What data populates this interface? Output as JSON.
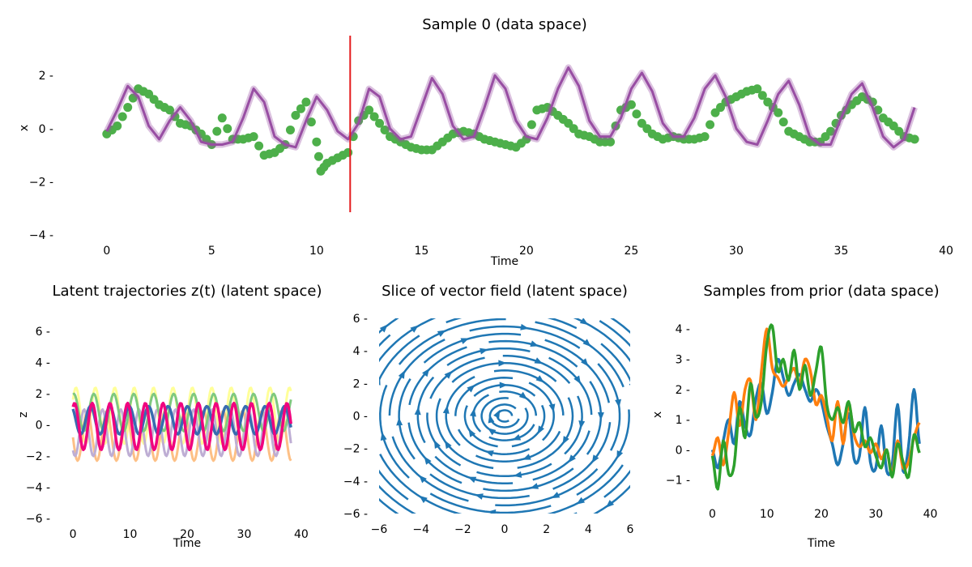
{
  "chart_data": [
    {
      "type": "line",
      "title": "Sample 0 (data space)",
      "xlabel": "Time",
      "ylabel": "x",
      "xlim": [
        -2,
        40
      ],
      "ylim": [
        -4,
        3.5
      ],
      "xticks": [
        "0",
        "5",
        "10",
        "15",
        "20",
        "25",
        "30",
        "35",
        "40"
      ],
      "yticks": [
        "2",
        "0",
        "−2",
        "−4"
      ],
      "vline_x": 11.6,
      "vline_color": "#e41a1c",
      "observations_color": "#4daf4a",
      "prediction_color": "#984ea3",
      "observations": {
        "t": [
          0,
          0.5,
          1,
          1.5,
          2,
          2.5,
          3,
          3.5,
          4,
          4.5,
          5,
          5.5,
          6,
          6.5,
          7,
          7.5,
          8,
          8.5,
          9,
          9.5,
          10,
          10.2,
          10.5,
          11,
          11.5,
          12,
          12.5,
          13,
          13.5,
          14,
          14.5,
          15,
          15.5,
          16,
          16.5,
          17,
          17.5,
          18,
          18.5,
          19,
          19.5,
          20,
          20.5,
          21,
          21.5,
          22,
          22.5,
          23,
          23.5,
          24,
          24.5,
          25,
          25.5,
          26,
          26.5,
          27,
          27.5,
          28,
          28.5,
          29,
          29.5,
          30,
          30.5,
          31,
          31.5,
          32,
          32.5,
          33,
          33.5,
          34,
          34.5,
          35,
          35.5,
          36,
          36.5,
          37,
          37.5,
          38,
          38.5
        ],
        "x": [
          -0.2,
          0.1,
          0.8,
          1.5,
          1.3,
          0.9,
          0.7,
          0.2,
          0.1,
          -0.2,
          -0.6,
          0.4,
          -0.4,
          -0.4,
          -0.3,
          -1.0,
          -0.9,
          -0.6,
          0.5,
          1.0,
          -0.5,
          -1.6,
          -1.3,
          -1.1,
          -0.9,
          0.3,
          0.7,
          0.2,
          -0.3,
          -0.5,
          -0.7,
          -0.8,
          -0.8,
          -0.5,
          -0.2,
          -0.1,
          -0.2,
          -0.4,
          -0.5,
          -0.6,
          -0.7,
          -0.4,
          0.7,
          0.8,
          0.5,
          0.2,
          -0.2,
          -0.3,
          -0.5,
          -0.5,
          0.7,
          0.9,
          0.2,
          -0.2,
          -0.4,
          -0.3,
          -0.4,
          -0.4,
          -0.3,
          0.6,
          1.0,
          1.2,
          1.4,
          1.5,
          1.0,
          0.6,
          -0.1,
          -0.3,
          -0.5,
          -0.5,
          -0.1,
          0.5,
          0.9,
          1.2,
          1.0,
          0.4,
          0.1,
          -0.3,
          -0.4
        ]
      },
      "prediction": {
        "t": [
          0,
          0.5,
          1,
          1.5,
          2,
          2.5,
          3,
          3.5,
          4,
          4.5,
          5,
          5.5,
          6,
          6.5,
          7,
          7.5,
          8,
          8.5,
          9,
          9.5,
          10,
          10.5,
          11,
          11.5,
          12,
          12.5,
          13,
          13.5,
          14,
          14.5,
          15,
          15.5,
          16,
          16.5,
          17,
          17.5,
          18,
          18.5,
          19,
          19.5,
          20,
          20.5,
          21,
          21.5,
          22,
          22.5,
          23,
          23.5,
          24,
          24.5,
          25,
          25.5,
          26,
          26.5,
          27,
          27.5,
          28,
          28.5,
          29,
          29.5,
          30,
          30.5,
          31,
          31.5,
          32,
          32.5,
          33,
          33.5,
          34,
          34.5,
          35,
          35.5,
          36,
          36.5,
          37,
          37.5,
          38,
          38.5
        ],
        "x": [
          -0.1,
          0.7,
          1.6,
          1.2,
          0.1,
          -0.4,
          0.3,
          0.8,
          0.3,
          -0.5,
          -0.6,
          -0.6,
          -0.5,
          0.4,
          1.5,
          1.0,
          -0.3,
          -0.6,
          -0.7,
          0.3,
          1.2,
          0.7,
          -0.1,
          -0.4,
          0.2,
          1.5,
          1.2,
          0.0,
          -0.4,
          -0.3,
          0.8,
          1.9,
          1.3,
          0.1,
          -0.4,
          -0.3,
          0.8,
          2.0,
          1.5,
          0.3,
          -0.3,
          -0.4,
          0.4,
          1.5,
          2.3,
          1.6,
          0.3,
          -0.3,
          -0.3,
          0.4,
          1.5,
          2.1,
          1.4,
          0.2,
          -0.3,
          -0.3,
          0.4,
          1.5,
          2.0,
          1.2,
          0.0,
          -0.5,
          -0.6,
          0.3,
          1.3,
          1.8,
          0.9,
          -0.3,
          -0.6,
          -0.6,
          0.4,
          1.3,
          1.7,
          0.8,
          -0.3,
          -0.7,
          -0.4,
          0.8
        ]
      }
    },
    {
      "type": "line",
      "title": "Latent trajectories z(t) (latent space)",
      "xlabel": "Time",
      "ylabel": "z",
      "xlim": [
        -2,
        42
      ],
      "ylim": [
        -6,
        7
      ],
      "xticks": [
        "0",
        "10",
        "20",
        "30",
        "40"
      ],
      "yticks": [
        "6",
        "4",
        "2",
        "0",
        "−2",
        "−4",
        "−6"
      ],
      "series": [
        {
          "color": "#ffff99",
          "amplitude": 1.8,
          "offset": 0.6,
          "period": 3.4,
          "phase": 0.6
        },
        {
          "color": "#fdc086",
          "amplitude": 1.6,
          "offset": -0.7,
          "period": 3.4,
          "phase": 3.2
        },
        {
          "color": "#beaed4",
          "amplitude": 1.5,
          "offset": -0.5,
          "period": 3.2,
          "phase": 4.0
        },
        {
          "color": "#7fc97f",
          "amplitude": 1.2,
          "offset": 0.8,
          "period": 3.5,
          "phase": 1.3
        },
        {
          "color": "#386cb0",
          "amplitude": 0.9,
          "offset": 0.3,
          "period": 3.4,
          "phase": 2.2
        },
        {
          "color": "#f0027f",
          "amplitude": 1.5,
          "offset": -0.1,
          "period": 3.1,
          "phase": 1.0
        }
      ]
    },
    {
      "type": "streamplot",
      "title": "Slice of vector field (latent space)",
      "xlim": [
        -6,
        6
      ],
      "ylim": [
        -6,
        6
      ],
      "xticks": [
        "−6",
        "−4",
        "−2",
        "0",
        "2",
        "4",
        "6"
      ],
      "yticks": [
        "6",
        "4",
        "2",
        "0",
        "−2",
        "−4",
        "−6"
      ],
      "color": "#1f77b4"
    },
    {
      "type": "line",
      "title": "Samples from prior (data space)",
      "xlabel": "Time",
      "ylabel": "x",
      "xlim": [
        -2,
        42
      ],
      "ylim": [
        -1.6,
        4.3
      ],
      "xticks": [
        "0",
        "10",
        "20",
        "30",
        "40"
      ],
      "yticks": [
        "4",
        "3",
        "2",
        "1",
        "0",
        "−1"
      ],
      "series": [
        {
          "color": "#1f77b4",
          "t": [
            0,
            1,
            2,
            3,
            4,
            5,
            6,
            7,
            8,
            9,
            10,
            11,
            12,
            13,
            14,
            15,
            16,
            17,
            18,
            19,
            20,
            21,
            22,
            23,
            24,
            25,
            26,
            27,
            28,
            29,
            30,
            31,
            32,
            33,
            34,
            35,
            36,
            37,
            38
          ],
          "x": [
            0.0,
            -0.6,
            0.3,
            1.0,
            0.2,
            1.6,
            0.8,
            0.5,
            1.7,
            2.2,
            1.2,
            1.9,
            3.0,
            2.4,
            1.8,
            2.2,
            2.5,
            2.0,
            1.6,
            2.0,
            1.6,
            0.8,
            0.2,
            -0.5,
            0.2,
            1.2,
            -0.3,
            -0.2,
            1.4,
            -0.4,
            -0.6,
            0.8,
            -0.7,
            -0.5,
            1.5,
            -0.7,
            0.1,
            2.0,
            0.2
          ]
        },
        {
          "color": "#ff7f0e",
          "t": [
            0,
            1,
            2,
            3,
            4,
            5,
            6,
            7,
            8,
            9,
            10,
            11,
            12,
            13,
            14,
            15,
            16,
            17,
            18,
            19,
            20,
            21,
            22,
            23,
            24,
            25,
            26,
            27,
            28,
            29,
            30,
            31,
            32,
            33,
            34,
            35,
            36,
            37,
            38
          ],
          "x": [
            -0.2,
            0.4,
            -0.5,
            0.6,
            1.9,
            0.8,
            2.0,
            2.3,
            1.0,
            2.6,
            4.0,
            2.7,
            2.4,
            2.1,
            2.4,
            2.7,
            2.2,
            3.0,
            2.6,
            1.5,
            1.8,
            1.1,
            0.3,
            1.6,
            0.2,
            1.5,
            0.5,
            0.1,
            0.3,
            -0.1,
            0.2,
            -0.3,
            0.0,
            -0.8,
            0.3,
            -0.6,
            -0.4,
            0.4,
            0.9
          ]
        },
        {
          "color": "#2ca02c",
          "t": [
            0,
            1,
            2,
            3,
            4,
            5,
            6,
            7,
            8,
            9,
            10,
            11,
            12,
            13,
            14,
            15,
            16,
            17,
            18,
            19,
            20,
            21,
            22,
            23,
            24,
            25,
            26,
            27,
            28,
            29,
            30,
            31,
            32,
            33,
            34,
            35,
            36,
            37,
            38
          ],
          "x": [
            -0.2,
            -1.3,
            0.3,
            -0.8,
            -0.5,
            1.4,
            0.4,
            2.2,
            1.1,
            1.6,
            3.5,
            4.1,
            2.6,
            3.0,
            2.3,
            3.3,
            2.0,
            2.8,
            1.8,
            2.6,
            3.4,
            1.5,
            1.0,
            1.4,
            0.9,
            1.6,
            0.6,
            0.9,
            0.1,
            0.4,
            -0.2,
            -0.6,
            0.0,
            -0.9,
            0.2,
            -0.4,
            -0.9,
            0.5,
            -0.1
          ]
        }
      ]
    }
  ]
}
